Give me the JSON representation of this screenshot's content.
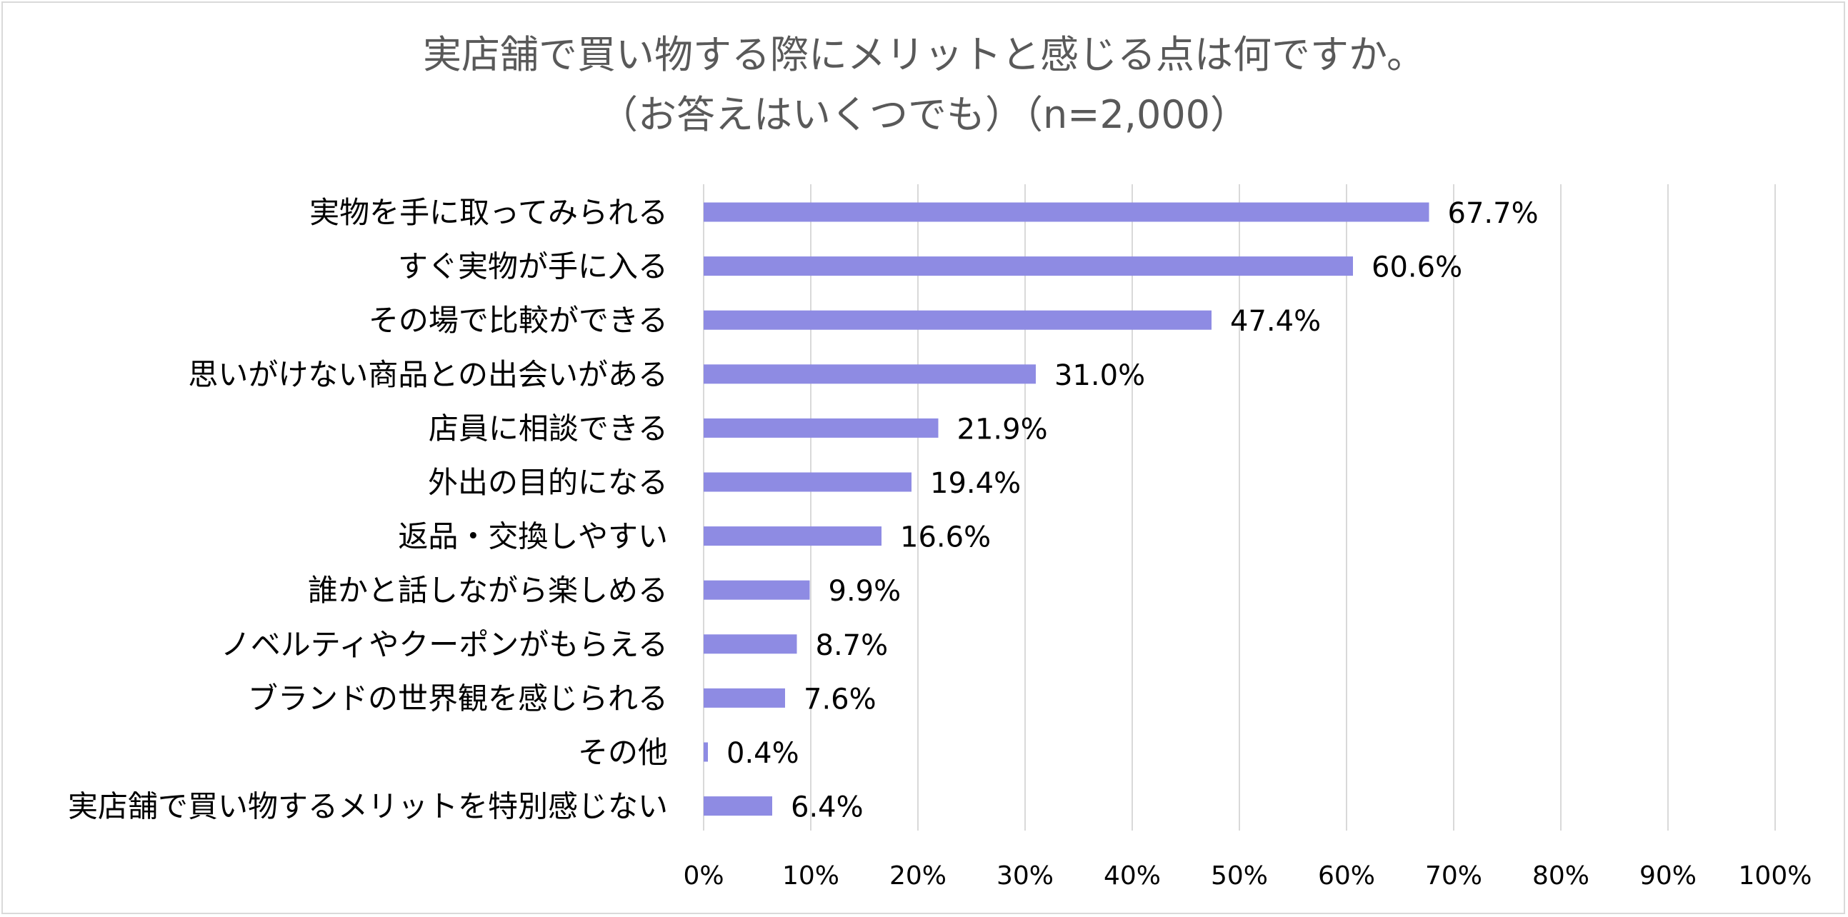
{
  "chart_data": {
    "type": "bar",
    "orientation": "horizontal",
    "title": "実店舗で買い物する際にメリットと感じる点は何ですか。",
    "subtitle": "（お答えはいくつでも）（n=2,000）",
    "categories": [
      "実物を手に取ってみられる",
      "すぐ実物が手に入る",
      "その場で比較ができる",
      "思いがけない商品との出会いがある",
      "店員に相談できる",
      "外出の目的になる",
      "返品・交換しやすい",
      "誰かと話しながら楽しめる",
      "ノベルティやクーポンがもらえる",
      "ブランドの世界観を感じられる",
      "その他",
      "実店舗で買い物するメリットを特別感じない"
    ],
    "values": [
      67.7,
      60.6,
      47.4,
      31.0,
      21.9,
      19.4,
      16.6,
      9.9,
      8.7,
      7.6,
      0.4,
      6.4
    ],
    "value_labels": [
      "67.7%",
      "60.6%",
      "47.4%",
      "31.0%",
      "21.9%",
      "19.4%",
      "16.6%",
      "9.9%",
      "8.7%",
      "7.6%",
      "0.4%",
      "6.4%"
    ],
    "xlim": [
      0,
      100
    ],
    "x_ticks": [
      0,
      10,
      20,
      30,
      40,
      50,
      60,
      70,
      80,
      90,
      100
    ],
    "x_tick_labels": [
      "0%",
      "10%",
      "20%",
      "30%",
      "40%",
      "50%",
      "60%",
      "70%",
      "80%",
      "90%",
      "100%"
    ],
    "xlabel": "",
    "ylabel": "",
    "grid": true,
    "legend": "none",
    "bar_color": "#8e8be3",
    "grid_color": "#d9d9d9"
  }
}
